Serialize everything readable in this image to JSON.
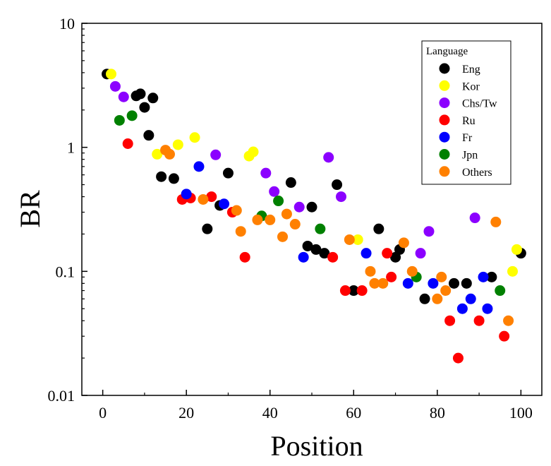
{
  "chart_data": {
    "type": "scatter",
    "xlabel": "Position",
    "ylabel": "BR",
    "xlim": [
      -5,
      105
    ],
    "ylim": [
      0.01,
      10
    ],
    "yscale": "log",
    "xticks": [
      0,
      20,
      40,
      60,
      80,
      100
    ],
    "xtick_labels": [
      "0",
      "20",
      "40",
      "60",
      "80",
      "100"
    ],
    "yticks": [
      10,
      1,
      0.1,
      0.01
    ],
    "ytick_labels": [
      "10",
      "1",
      "0.1",
      "0.01"
    ],
    "grid": false,
    "legend": {
      "title": "Language",
      "placement": "top-right",
      "entries": [
        "Eng",
        "Kor",
        "Chs/Tw",
        "Ru",
        "Fr",
        "Jpn",
        "Others"
      ]
    },
    "series": [
      {
        "name": "Eng",
        "color": "#000000",
        "points": [
          [
            1,
            3.9
          ],
          [
            8,
            2.6
          ],
          [
            9,
            2.7
          ],
          [
            10,
            2.1
          ],
          [
            11,
            1.25
          ],
          [
            12,
            2.5
          ],
          [
            14,
            0.58
          ],
          [
            17,
            0.56
          ],
          [
            25,
            0.22
          ],
          [
            28,
            0.34
          ],
          [
            30,
            0.62
          ],
          [
            45,
            0.52
          ],
          [
            49,
            0.16
          ],
          [
            50,
            0.33
          ],
          [
            51,
            0.15
          ],
          [
            53,
            0.14
          ],
          [
            56,
            0.5
          ],
          [
            60,
            0.07
          ],
          [
            66,
            0.22
          ],
          [
            70,
            0.13
          ],
          [
            71,
            0.15
          ],
          [
            77,
            0.06
          ],
          [
            84,
            0.08
          ],
          [
            87,
            0.08
          ],
          [
            93,
            0.09
          ],
          [
            100,
            0.14
          ]
        ]
      },
      {
        "name": "Kor",
        "color": "#FFFF00",
        "points": [
          [
            2,
            3.9
          ],
          [
            13,
            0.88
          ],
          [
            18,
            1.05
          ],
          [
            22,
            1.2
          ],
          [
            35,
            0.85
          ],
          [
            36,
            0.92
          ],
          [
            61,
            0.18
          ],
          [
            98,
            0.1
          ],
          [
            99,
            0.15
          ]
        ]
      },
      {
        "name": "Chs/Tw",
        "color": "#8B00FF",
        "points": [
          [
            3,
            3.1
          ],
          [
            5,
            2.55
          ],
          [
            27,
            0.87
          ],
          [
            39,
            0.62
          ],
          [
            41,
            0.44
          ],
          [
            47,
            0.33
          ],
          [
            54,
            0.83
          ],
          [
            57,
            0.4
          ],
          [
            76,
            0.14
          ],
          [
            78,
            0.21
          ],
          [
            89,
            0.27
          ]
        ]
      },
      {
        "name": "Ru",
        "color": "#FF0000",
        "points": [
          [
            6,
            1.07
          ],
          [
            19,
            0.38
          ],
          [
            21,
            0.39
          ],
          [
            26,
            0.4
          ],
          [
            31,
            0.3
          ],
          [
            34,
            0.13
          ],
          [
            55,
            0.13
          ],
          [
            58,
            0.07
          ],
          [
            62,
            0.07
          ],
          [
            68,
            0.14
          ],
          [
            69,
            0.09
          ],
          [
            83,
            0.04
          ],
          [
            85,
            0.02
          ],
          [
            90,
            0.04
          ],
          [
            96,
            0.03
          ]
        ]
      },
      {
        "name": "Fr",
        "color": "#0000FF",
        "points": [
          [
            20,
            0.42
          ],
          [
            23,
            0.7
          ],
          [
            29,
            0.35
          ],
          [
            48,
            0.13
          ],
          [
            63,
            0.14
          ],
          [
            73,
            0.08
          ],
          [
            79,
            0.08
          ],
          [
            86,
            0.05
          ],
          [
            88,
            0.06
          ],
          [
            91,
            0.09
          ],
          [
            92,
            0.05
          ]
        ]
      },
      {
        "name": "Jpn",
        "color": "#008000",
        "points": [
          [
            4,
            1.65
          ],
          [
            7,
            1.8
          ],
          [
            38,
            0.28
          ],
          [
            42,
            0.37
          ],
          [
            52,
            0.22
          ],
          [
            75,
            0.09
          ],
          [
            95,
            0.07
          ]
        ]
      },
      {
        "name": "Others",
        "color": "#FF8000",
        "points": [
          [
            15,
            0.95
          ],
          [
            16,
            0.88
          ],
          [
            24,
            0.38
          ],
          [
            32,
            0.31
          ],
          [
            33,
            0.21
          ],
          [
            37,
            0.26
          ],
          [
            40,
            0.26
          ],
          [
            43,
            0.19
          ],
          [
            44,
            0.29
          ],
          [
            46,
            0.24
          ],
          [
            59,
            0.18
          ],
          [
            64,
            0.1
          ],
          [
            65,
            0.08
          ],
          [
            67,
            0.08
          ],
          [
            72,
            0.17
          ],
          [
            74,
            0.1
          ],
          [
            80,
            0.06
          ],
          [
            81,
            0.09
          ],
          [
            82,
            0.07
          ],
          [
            94,
            0.25
          ],
          [
            97,
            0.04
          ]
        ]
      }
    ]
  }
}
